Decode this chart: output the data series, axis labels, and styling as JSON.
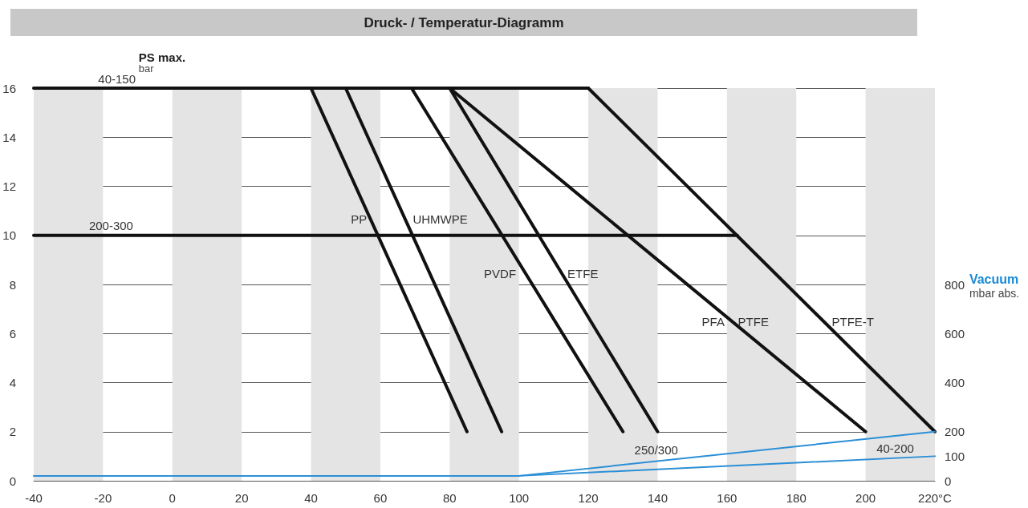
{
  "chart_data": {
    "type": "line",
    "title": "Druck- / Temperatur-Diagramm",
    "ylabel": "PS max.\nbar",
    "y2label": "Vacuum\nmbar abs.",
    "xlim": [
      -40,
      220
    ],
    "xticks": [
      -40,
      -20,
      0,
      20,
      40,
      60,
      80,
      100,
      120,
      140,
      160,
      180,
      200,
      {
        "value": 220,
        "label": "220°C"
      }
    ],
    "ylim": [
      0,
      16
    ],
    "yticks": [
      0,
      2,
      4,
      6,
      8,
      10,
      12,
      14,
      16
    ],
    "y2lim": [
      0,
      1600
    ],
    "y2ticks": [
      0,
      100,
      200,
      400,
      600,
      800
    ],
    "grid": "y",
    "legend": false,
    "marker": "none",
    "line_style": "solid",
    "series": [
      {
        "name": "40-150",
        "color": "#111111",
        "x": [
          -40,
          120
        ],
        "values": [
          16,
          16
        ]
      },
      {
        "name": "200-300",
        "color": "#111111",
        "x": [
          -40,
          163
        ],
        "values": [
          10,
          10
        ]
      },
      {
        "name": "PP",
        "color": "#111111",
        "x": [
          40,
          85
        ],
        "values": [
          16,
          2
        ]
      },
      {
        "name": "UHMWPE",
        "color": "#111111",
        "x": [
          50,
          95
        ],
        "values": [
          16,
          2
        ]
      },
      {
        "name": "PVDF",
        "color": "#111111",
        "x": [
          69,
          130
        ],
        "values": [
          16,
          2
        ]
      },
      {
        "name": "ETFE",
        "color": "#111111",
        "x": [
          80,
          140
        ],
        "values": [
          16,
          2
        ]
      },
      {
        "name": "PFA",
        "color": "#111111",
        "x": [
          80,
          200
        ],
        "values": [
          16,
          2
        ]
      },
      {
        "name": "PTFE-T",
        "color": "#111111",
        "x": [
          120,
          220
        ],
        "values": [
          16,
          2
        ]
      },
      {
        "name": "250/300",
        "color": "#2b8fd6",
        "axis": "y2",
        "x": [
          -40,
          100,
          220
        ],
        "values": [
          20,
          20,
          200
        ]
      },
      {
        "name": "40-200",
        "color": "#2b8fd6",
        "axis": "y2",
        "x": [
          100,
          220
        ],
        "values": [
          20,
          100
        ]
      }
    ],
    "bands": [
      {
        "axis": "x",
        "from": -40,
        "to": -20,
        "color": "#e4e4e4"
      },
      {
        "axis": "x",
        "from": 0,
        "to": 20,
        "color": "#e4e4e4"
      },
      {
        "axis": "x",
        "from": 40,
        "to": 60,
        "color": "#e4e4e4"
      },
      {
        "axis": "x",
        "from": 80,
        "to": 100,
        "color": "#e4e4e4"
      },
      {
        "axis": "x",
        "from": 120,
        "to": 140,
        "color": "#e4e4e4"
      },
      {
        "axis": "x",
        "from": 160,
        "to": 180,
        "color": "#e4e4e4"
      },
      {
        "axis": "x",
        "from": 200,
        "to": 220,
        "color": "#e4e4e4"
      }
    ],
    "annotations": [
      "PTFE"
    ]
  }
}
